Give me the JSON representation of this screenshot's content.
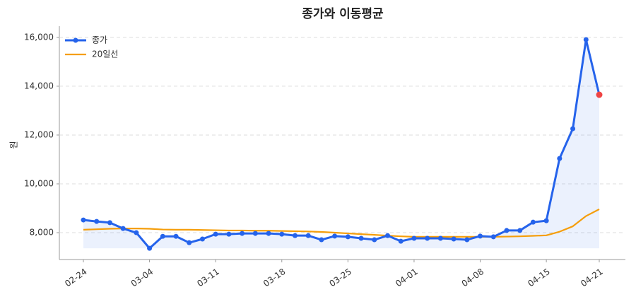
{
  "chart_data": {
    "type": "line",
    "title": "종가와 이동평균",
    "y_label": "원",
    "categories": [
      "02-24",
      null,
      null,
      null,
      null,
      "03-04",
      null,
      null,
      null,
      null,
      "03-11",
      null,
      null,
      null,
      null,
      "03-18",
      null,
      null,
      null,
      null,
      "03-25",
      null,
      null,
      null,
      null,
      "04-01",
      null,
      null,
      null,
      null,
      "04-08",
      null,
      null,
      null,
      null,
      "04-15",
      null,
      null,
      null,
      "04-21"
    ],
    "series": [
      {
        "name": "종가",
        "color": "#2563eb",
        "values": [
          8520,
          8460,
          8410,
          8170,
          8000,
          7360,
          7850,
          7850,
          7590,
          7740,
          7940,
          7940,
          7970,
          7970,
          7970,
          7940,
          7880,
          7880,
          7710,
          7860,
          7830,
          7770,
          7710,
          7880,
          7650,
          7770,
          7770,
          7770,
          7740,
          7710,
          7860,
          7830,
          8090,
          8090,
          8430,
          8490,
          11040,
          12260,
          15910,
          13650
        ]
      },
      {
        "name": "20일선",
        "color": "#f59e0b",
        "values": [
          8120,
          8140,
          8160,
          8170,
          8170,
          8160,
          8130,
          8120,
          8120,
          8110,
          8100,
          8090,
          8090,
          8080,
          8080,
          8070,
          8060,
          8050,
          8030,
          8000,
          7970,
          7940,
          7910,
          7880,
          7850,
          7830,
          7830,
          7830,
          7830,
          7830,
          7830,
          7830,
          7840,
          7850,
          7870,
          7890,
          8040,
          8260,
          8680,
          8960
        ]
      }
    ],
    "last_point_color": "#ef4444",
    "ylim": [
      6900,
      16460
    ],
    "yticks": [
      {
        "value": 8000,
        "label": "8,000"
      },
      {
        "value": 10000,
        "label": "10,000"
      },
      {
        "value": 12000,
        "label": "12,000"
      },
      {
        "value": 14000,
        "label": "14,000"
      },
      {
        "value": 16000,
        "label": "16,000"
      }
    ],
    "grid": true,
    "legend": "upper-left"
  }
}
